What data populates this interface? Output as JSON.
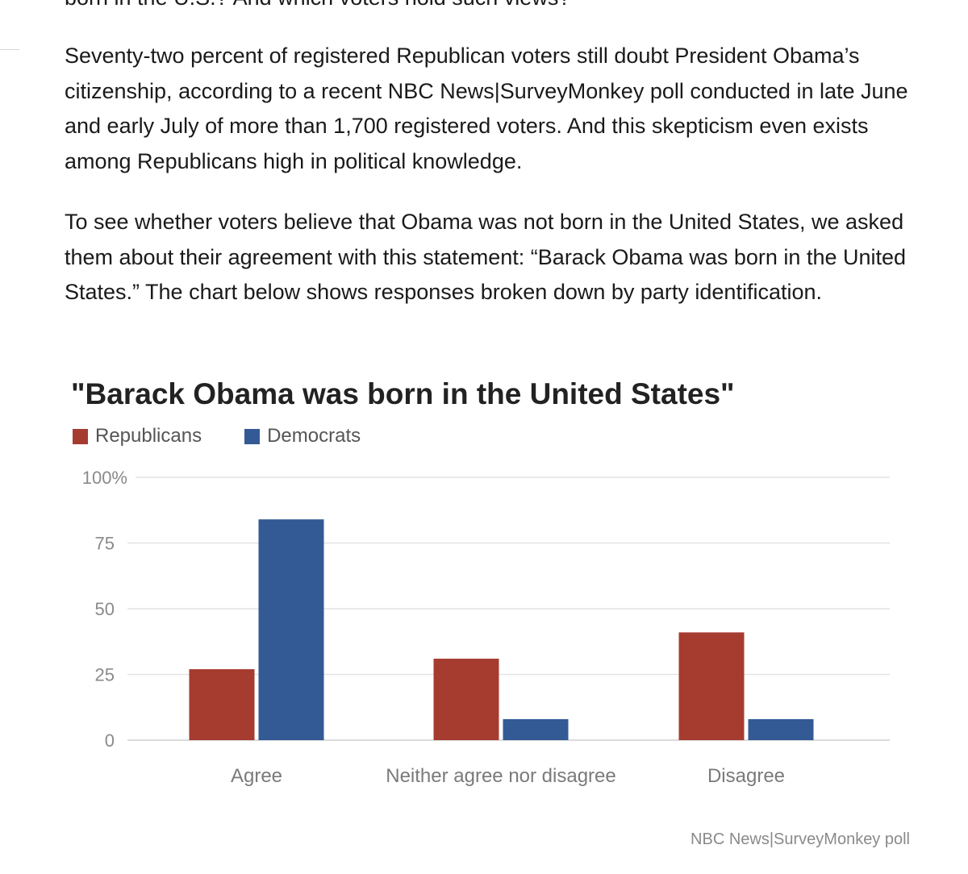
{
  "article": {
    "cut_line": "born in the U.S.? And which voters hold such views?",
    "paragraph_1": "Seventy-two percent of registered Republican voters still doubt President Obama’s citizenship, according to a recent NBC News|SurveyMonkey poll conducted in late June and early July of more than 1,700 registered voters. And this skepticism even exists among Republicans high in political knowledge.",
    "paragraph_2": "To see whether voters believe that Obama was not born in the United States, we asked them about their agreement with this statement: “Barack Obama was born in the United States.” The chart below shows responses broken down by party identification."
  },
  "chart_data": {
    "type": "bar",
    "title": "\"Barack Obama was born in the United States\"",
    "categories": [
      "Agree",
      "Neither agree nor disagree",
      "Disagree"
    ],
    "series": [
      {
        "name": "Republicans",
        "color": "#a63c30",
        "values": [
          27,
          31,
          41
        ]
      },
      {
        "name": "Democrats",
        "color": "#335a95",
        "values": [
          84,
          8,
          8
        ]
      }
    ],
    "ylim": [
      0,
      100
    ],
    "yticks": [
      "0",
      "25",
      "50",
      "75",
      "100%"
    ],
    "ytick_values": [
      0,
      25,
      50,
      75,
      100
    ],
    "grid": true,
    "legend": "top-left",
    "source": "NBC News|SurveyMonkey poll"
  }
}
